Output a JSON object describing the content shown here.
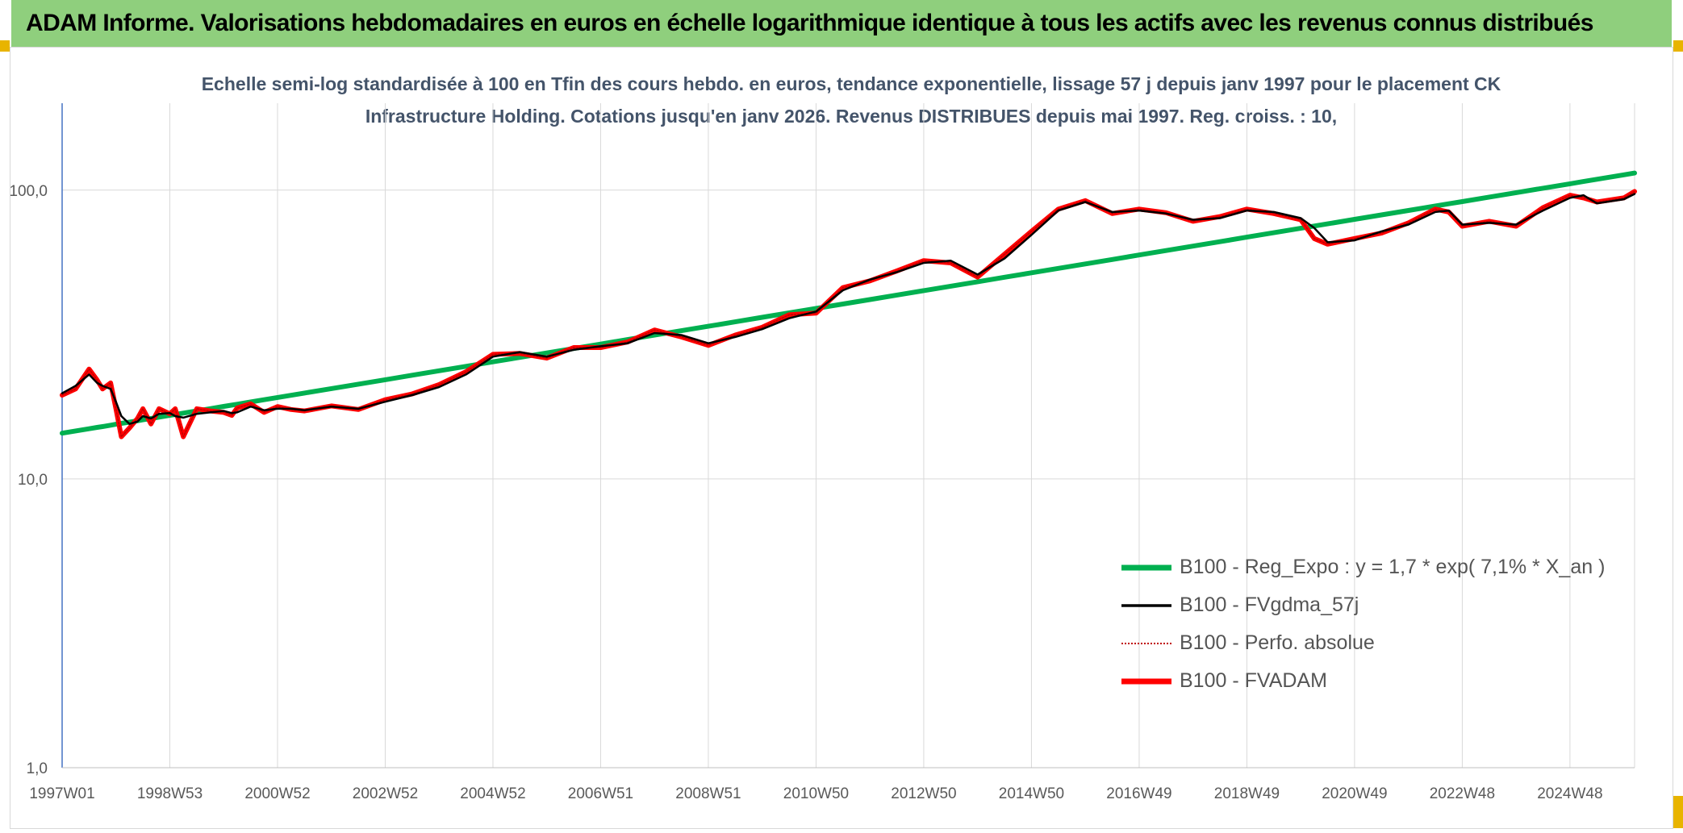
{
  "header": {
    "title": "ADAM Informe. Valorisations hebdomadaires en euros en échelle logarithmique identique à tous les actifs avec les revenus connus distribués"
  },
  "chart_data": {
    "type": "line",
    "title": "Echelle semi-log standardisée à 100 en Tfin des cours hebdo. en euros, tendance exponentielle, lissage 57 j depuis janv 1997 pour le placement CK Infrastructure Holding. Cotations jusqu'en janv 2026. Revenus DISTRIBUES depuis mai 1997. Reg. croiss. : 10,",
    "y_scale": "log",
    "ylim": [
      1,
      200
    ],
    "y_ticks": [
      "1,0",
      "10,0",
      "100,0"
    ],
    "y_tick_values": [
      1,
      10,
      100
    ],
    "xlim": [
      1997.0,
      2026.2
    ],
    "x_ticks": [
      "1997W01",
      "1998W53",
      "2000W52",
      "2002W52",
      "2004W52",
      "2006W51",
      "2008W51",
      "2010W50",
      "2012W50",
      "2014W50",
      "2016W49",
      "2018W49",
      "2020W49",
      "2022W48",
      "2024W48"
    ],
    "x_tick_values": [
      1997.0,
      1999.0,
      2001.0,
      2003.0,
      2005.0,
      2007.0,
      2009.0,
      2011.0,
      2013.0,
      2015.0,
      2017.0,
      2019.0,
      2021.0,
      2023.0,
      2025.0
    ],
    "grid": true,
    "legend_position": "bottom-right",
    "x": [
      1997.0,
      1997.25,
      1997.5,
      1997.65,
      1997.75,
      1997.9,
      1998.0,
      1998.1,
      1998.25,
      1998.4,
      1998.5,
      1998.65,
      1998.8,
      1999.0,
      1999.1,
      1999.25,
      1999.5,
      1999.75,
      2000.0,
      2000.15,
      2000.25,
      2000.5,
      2000.75,
      2001.0,
      2001.25,
      2001.5,
      2002.0,
      2002.5,
      2003.0,
      2003.5,
      2004.0,
      2004.5,
      2005.0,
      2005.5,
      2006.0,
      2006.5,
      2007.0,
      2007.5,
      2008.0,
      2008.5,
      2009.0,
      2009.5,
      2010.0,
      2010.5,
      2011.0,
      2011.5,
      2012.0,
      2012.5,
      2013.0,
      2013.5,
      2014.0,
      2014.5,
      2015.0,
      2015.5,
      2016.0,
      2016.5,
      2017.0,
      2017.5,
      2018.0,
      2018.5,
      2019.0,
      2019.5,
      2020.0,
      2020.25,
      2020.5,
      2021.0,
      2021.5,
      2022.0,
      2022.5,
      2022.75,
      2023.0,
      2023.5,
      2024.0,
      2024.5,
      2025.0,
      2025.25,
      2025.5,
      2026.0,
      2026.2
    ],
    "series": [
      {
        "name": "B100 - Reg_Expo : y = 1,7 * exp( 7,1% *  X_an )",
        "color": "#00b050",
        "style": "thick",
        "values": [
          14.4,
          14.66,
          14.92,
          15.08,
          15.18,
          15.35,
          15.46,
          15.57,
          15.73,
          15.9,
          16.02,
          16.19,
          16.36,
          16.6,
          16.72,
          16.9,
          17.2,
          17.51,
          17.82,
          18.01,
          18.14,
          18.47,
          18.8,
          19.14,
          19.48,
          19.83,
          20.55,
          21.29,
          22.06,
          22.86,
          23.69,
          24.54,
          25.43,
          26.35,
          27.3,
          28.29,
          29.31,
          30.37,
          31.47,
          32.6,
          33.78,
          35.0,
          36.27,
          37.58,
          38.93,
          40.34,
          41.8,
          43.31,
          44.88,
          46.5,
          48.18,
          49.92,
          51.73,
          53.6,
          55.53,
          57.54,
          59.62,
          61.78,
          64.01,
          66.32,
          68.72,
          71.21,
          73.78,
          75.11,
          76.45,
          79.22,
          82.08,
          85.05,
          88.12,
          89.7,
          91.3,
          94.6,
          98.02,
          101.56,
          105.23,
          107.12,
          109.04,
          112.98,
          114.6
        ]
      },
      {
        "name": "B100 - FVgdma_57j",
        "color": "#000000",
        "style": "medium",
        "values": [
          19.8,
          21.0,
          23.0,
          21.5,
          21.0,
          20.5,
          18.5,
          16.5,
          15.5,
          15.8,
          16.5,
          16.2,
          16.8,
          16.9,
          16.5,
          16.3,
          16.8,
          17.0,
          17.2,
          16.9,
          17.0,
          17.8,
          17.3,
          17.5,
          17.5,
          17.3,
          17.8,
          17.5,
          18.5,
          19.5,
          20.8,
          23.0,
          26.5,
          27.5,
          26.5,
          28.0,
          28.8,
          29.5,
          32.0,
          31.5,
          29.5,
          31.0,
          33.0,
          36.0,
          38.0,
          45.0,
          49.0,
          52.0,
          56.0,
          57.0,
          51.0,
          58.0,
          70.0,
          85.0,
          91.0,
          84.0,
          85.0,
          83.0,
          79.0,
          80.0,
          85.0,
          84.0,
          80.0,
          74.0,
          66.0,
          67.0,
          72.0,
          76.0,
          84.0,
          85.0,
          76.0,
          77.0,
          76.0,
          85.0,
          94.0,
          96.0,
          90.0,
          93.0,
          97.0
        ]
      },
      {
        "name": "B100 - Perfo. absolue",
        "color": "#c00000",
        "style": "dotted",
        "values": [
          19.5,
          20.5,
          24.0,
          22.0,
          20.5,
          21.5,
          17.5,
          14.0,
          15.0,
          16.2,
          17.5,
          15.5,
          17.5,
          16.8,
          17.5,
          14.0,
          17.5,
          17.2,
          17.0,
          16.6,
          17.6,
          18.2,
          17.0,
          17.8,
          17.4,
          17.2,
          17.9,
          17.4,
          18.8,
          19.7,
          21.2,
          23.5,
          27.0,
          27.2,
          26.2,
          28.5,
          28.5,
          29.8,
          32.8,
          31.0,
          29.0,
          31.5,
          33.5,
          37.0,
          37.5,
          46.0,
          48.5,
          52.5,
          57.0,
          56.0,
          50.0,
          60.0,
          72.0,
          86.0,
          92.0,
          83.0,
          86.0,
          83.5,
          78.0,
          81.0,
          86.0,
          83.0,
          79.0,
          68.0,
          65.0,
          68.0,
          71.0,
          77.0,
          86.0,
          84.0,
          75.0,
          78.0,
          75.0,
          87.0,
          96.0,
          94.0,
          91.0,
          94.0,
          99.0
        ]
      },
      {
        "name": "B100 - FVADAM",
        "color": "#ff0000",
        "style": "thick",
        "values": [
          19.5,
          20.5,
          24.0,
          22.0,
          20.5,
          21.5,
          17.5,
          14.0,
          15.0,
          16.2,
          17.5,
          15.5,
          17.5,
          16.8,
          17.5,
          14.0,
          17.5,
          17.2,
          17.0,
          16.6,
          17.6,
          18.2,
          17.0,
          17.8,
          17.4,
          17.2,
          17.9,
          17.4,
          18.8,
          19.7,
          21.2,
          23.5,
          27.0,
          27.2,
          26.2,
          28.5,
          28.5,
          29.8,
          32.8,
          31.0,
          29.0,
          31.5,
          33.5,
          37.0,
          37.5,
          46.0,
          48.5,
          52.5,
          57.0,
          56.0,
          50.0,
          60.0,
          72.0,
          86.0,
          92.0,
          83.0,
          86.0,
          83.5,
          78.0,
          81.0,
          86.0,
          83.0,
          79.0,
          68.0,
          65.0,
          68.0,
          71.0,
          77.0,
          86.0,
          84.0,
          75.0,
          78.0,
          75.0,
          87.0,
          96.0,
          94.0,
          91.0,
          94.0,
          99.0
        ]
      }
    ]
  }
}
